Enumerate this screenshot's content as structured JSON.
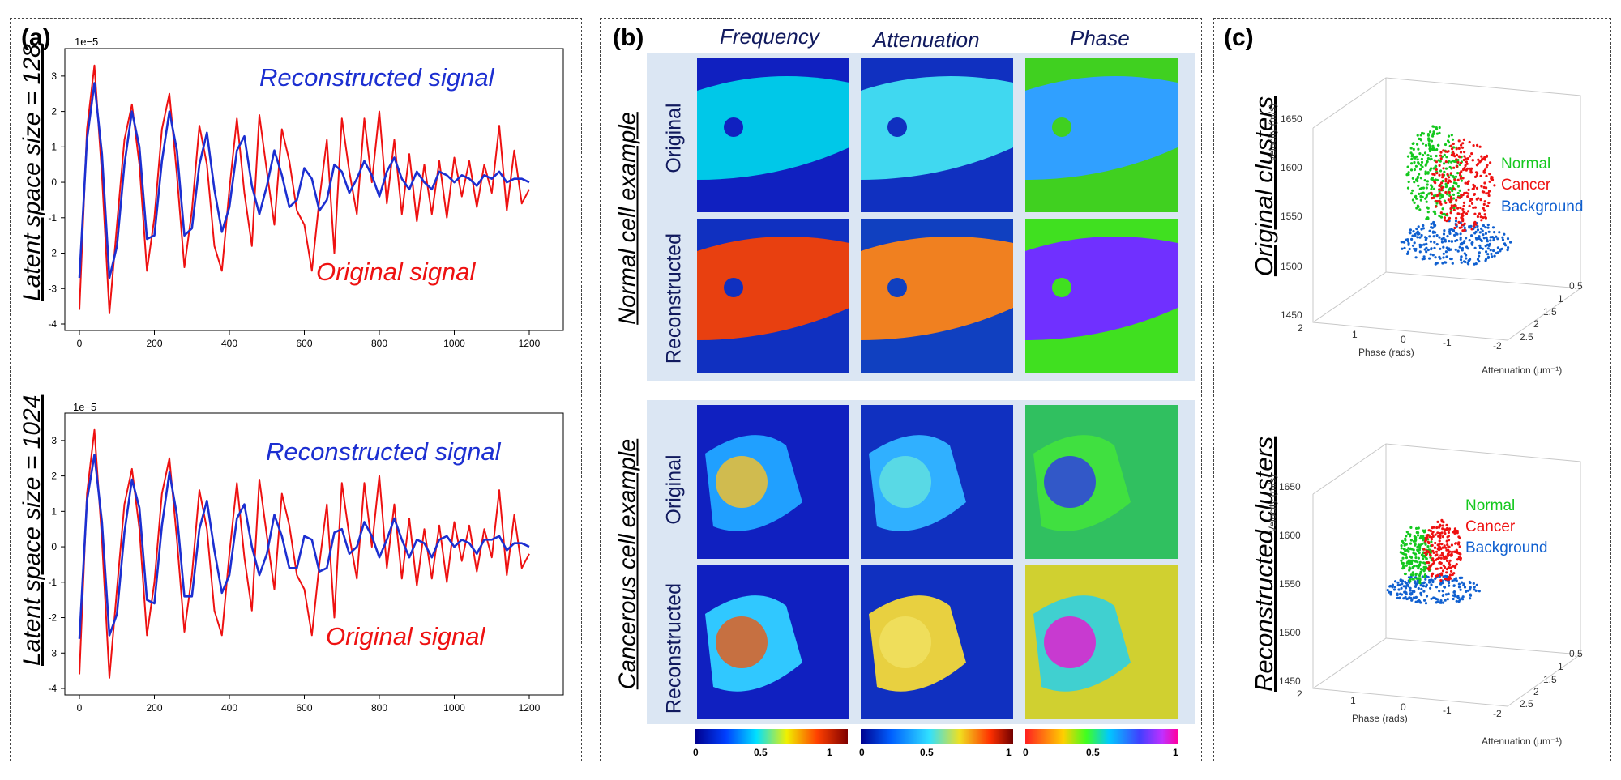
{
  "panel_a": {
    "label": "(a)",
    "plots": [
      {
        "ylabel": "Latent space size = 128",
        "exponent": "1e−5",
        "reconstructed_label": "Reconstructed signal",
        "original_label": "Original signal"
      },
      {
        "ylabel": "Latent space size = 1024",
        "exponent": "1e−5",
        "reconstructed_label": "Reconstructed signal",
        "original_label": "Original signal"
      }
    ]
  },
  "panel_b": {
    "label": "(b)",
    "columns": [
      "Frequency",
      "Attenuation",
      "Phase"
    ],
    "groups": [
      {
        "title": "Normal cell example",
        "rows": [
          "Original",
          "Reconstructed"
        ]
      },
      {
        "title": "Cancerous cell example",
        "rows": [
          "Original",
          "Reconstructed"
        ]
      }
    ],
    "colorbar_ticks": [
      "0",
      "0.5",
      "1"
    ]
  },
  "panel_c": {
    "label": "(c)",
    "plots": [
      {
        "title": "Original clusters",
        "legend": [
          "Normal",
          "Cancer",
          "Background"
        ]
      },
      {
        "title": "Reconstructed clusters",
        "legend": [
          "Normal",
          "Cancer",
          "Background"
        ]
      }
    ],
    "zlabel": "Velocity (m/s)",
    "xlabel": "Phase (rads)",
    "ylabel": "Attenuation (μm⁻¹)",
    "z_ticks": [
      "1450",
      "1500",
      "1550",
      "1600",
      "1650"
    ],
    "x_ticks": [
      "2",
      "1",
      "0",
      "-1",
      "-2"
    ],
    "y_ticks": [
      "0.5",
      "1",
      "1.5",
      "2",
      "2.5"
    ]
  },
  "colors": {
    "reconstructed": "#1c2fd1",
    "original": "#ee1111",
    "normal": "#14c81e",
    "cancer": "#ee1111",
    "background": "#1060d0"
  },
  "chart_data": [
    {
      "type": "line",
      "title": "Latent space size = 128",
      "x_ticks": [
        0,
        200,
        400,
        600,
        800,
        1000,
        1200
      ],
      "y_ticks": [
        -4,
        -3,
        -2,
        -1,
        0,
        1,
        2,
        3
      ],
      "xlim": [
        0,
        1200
      ],
      "ylim": [
        -4,
        3.5
      ],
      "y_scale_note": "1e-5",
      "series": [
        {
          "name": "Original signal",
          "x": [
            0,
            20,
            40,
            60,
            80,
            100,
            120,
            140,
            160,
            180,
            200,
            220,
            240,
            260,
            280,
            300,
            320,
            340,
            360,
            380,
            400,
            420,
            440,
            460,
            480,
            500,
            520,
            540,
            560,
            580,
            600,
            620,
            640,
            660,
            680,
            700,
            720,
            740,
            760,
            780,
            800,
            820,
            840,
            860,
            880,
            900,
            920,
            940,
            960,
            980,
            1000,
            1020,
            1040,
            1060,
            1080,
            1100,
            1120,
            1140,
            1160,
            1180,
            1200
          ],
          "y": [
            -3.6,
            1.5,
            3.3,
            0.2,
            -3.7,
            -1.2,
            1.2,
            2.2,
            0.5,
            -2.5,
            -1.0,
            1.5,
            2.5,
            0.2,
            -2.4,
            -0.8,
            1.6,
            0.5,
            -1.8,
            -2.5,
            -0.2,
            1.8,
            -0.3,
            -1.8,
            1.9,
            0.3,
            -1.2,
            1.5,
            0.6,
            -0.8,
            -1.2,
            -2.5,
            -0.5,
            1.2,
            -2.0,
            1.8,
            0.3,
            -0.9,
            1.8,
            0.0,
            2.0,
            -0.6,
            1.2,
            -0.9,
            0.8,
            -1.1,
            0.5,
            -0.9,
            0.6,
            -1.0,
            0.7,
            -0.4,
            0.6,
            -0.7,
            0.5,
            -0.3,
            1.6,
            -0.8,
            0.9,
            -0.6,
            -0.2
          ]
        },
        {
          "name": "Reconstructed signal",
          "x": [
            0,
            20,
            40,
            60,
            80,
            100,
            120,
            140,
            160,
            180,
            200,
            220,
            240,
            260,
            280,
            300,
            320,
            340,
            360,
            380,
            400,
            420,
            440,
            460,
            480,
            500,
            520,
            540,
            560,
            580,
            600,
            620,
            640,
            660,
            680,
            700,
            720,
            740,
            760,
            780,
            800,
            820,
            840,
            860,
            880,
            900,
            920,
            940,
            960,
            980,
            1000,
            1020,
            1040,
            1060,
            1080,
            1100,
            1120,
            1140,
            1160,
            1180,
            1200
          ],
          "y": [
            -2.7,
            1.2,
            2.8,
            0.8,
            -2.7,
            -1.8,
            0.5,
            2.0,
            1.0,
            -1.6,
            -1.5,
            0.6,
            2.0,
            0.9,
            -1.5,
            -1.3,
            0.5,
            1.4,
            -0.2,
            -1.4,
            -0.7,
            0.9,
            1.3,
            -0.1,
            -0.9,
            -0.1,
            0.9,
            0.2,
            -0.7,
            -0.5,
            0.4,
            0.1,
            -0.8,
            -0.5,
            0.5,
            0.3,
            -0.3,
            0.1,
            0.6,
            0.2,
            -0.4,
            0.3,
            0.7,
            0.1,
            -0.2,
            0.3,
            0.0,
            -0.2,
            0.3,
            0.2,
            0.0,
            0.2,
            0.1,
            -0.1,
            0.2,
            0.1,
            0.3,
            0.0,
            0.1,
            0.1,
            0.0
          ]
        }
      ]
    },
    {
      "type": "line",
      "title": "Latent space size = 1024",
      "x_ticks": [
        0,
        200,
        400,
        600,
        800,
        1000,
        1200
      ],
      "y_ticks": [
        -4,
        -3,
        -2,
        -1,
        0,
        1,
        2,
        3
      ],
      "xlim": [
        0,
        1200
      ],
      "ylim": [
        -4,
        3.5
      ],
      "y_scale_note": "1e-5",
      "series": [
        {
          "name": "Original signal",
          "x": [
            0,
            20,
            40,
            60,
            80,
            100,
            120,
            140,
            160,
            180,
            200,
            220,
            240,
            260,
            280,
            300,
            320,
            340,
            360,
            380,
            400,
            420,
            440,
            460,
            480,
            500,
            520,
            540,
            560,
            580,
            600,
            620,
            640,
            660,
            680,
            700,
            720,
            740,
            760,
            780,
            800,
            820,
            840,
            860,
            880,
            900,
            920,
            940,
            960,
            980,
            1000,
            1020,
            1040,
            1060,
            1080,
            1100,
            1120,
            1140,
            1160,
            1180,
            1200
          ],
          "y": [
            -3.6,
            1.5,
            3.3,
            0.2,
            -3.7,
            -1.2,
            1.2,
            2.2,
            0.5,
            -2.5,
            -1.0,
            1.5,
            2.5,
            0.2,
            -2.4,
            -0.8,
            1.6,
            0.5,
            -1.8,
            -2.5,
            -0.2,
            1.8,
            -0.3,
            -1.8,
            1.9,
            0.3,
            -1.2,
            1.5,
            0.6,
            -0.8,
            -1.2,
            -2.5,
            -0.5,
            1.2,
            -2.0,
            1.8,
            0.3,
            -0.9,
            1.8,
            0.0,
            2.0,
            -0.6,
            1.2,
            -0.9,
            0.8,
            -1.1,
            0.5,
            -0.9,
            0.6,
            -1.0,
            0.7,
            -0.4,
            0.6,
            -0.7,
            0.5,
            -0.3,
            1.6,
            -0.8,
            0.9,
            -0.6,
            -0.2
          ]
        },
        {
          "name": "Reconstructed signal",
          "x": [
            0,
            20,
            40,
            60,
            80,
            100,
            120,
            140,
            160,
            180,
            200,
            220,
            240,
            260,
            280,
            300,
            320,
            340,
            360,
            380,
            400,
            420,
            440,
            460,
            480,
            500,
            520,
            540,
            560,
            580,
            600,
            620,
            640,
            660,
            680,
            700,
            720,
            740,
            760,
            780,
            800,
            820,
            840,
            860,
            880,
            900,
            920,
            940,
            960,
            980,
            1000,
            1020,
            1040,
            1060,
            1080,
            1100,
            1120,
            1140,
            1160,
            1180,
            1200
          ],
          "y": [
            -2.6,
            1.3,
            2.6,
            0.7,
            -2.5,
            -1.9,
            0.4,
            1.9,
            1.1,
            -1.5,
            -1.6,
            0.6,
            2.1,
            0.9,
            -1.4,
            -1.4,
            0.5,
            1.3,
            -0.1,
            -1.3,
            -0.8,
            0.8,
            1.2,
            0.0,
            -0.8,
            -0.2,
            0.9,
            0.3,
            -0.6,
            -0.6,
            0.3,
            0.2,
            -0.7,
            -0.6,
            0.4,
            0.5,
            -0.2,
            0.0,
            0.7,
            0.3,
            -0.3,
            0.2,
            0.8,
            0.2,
            -0.3,
            0.2,
            0.1,
            -0.3,
            0.2,
            0.3,
            0.0,
            0.2,
            0.1,
            -0.2,
            0.2,
            0.2,
            0.3,
            -0.1,
            0.1,
            0.1,
            0.0
          ]
        }
      ]
    }
  ]
}
